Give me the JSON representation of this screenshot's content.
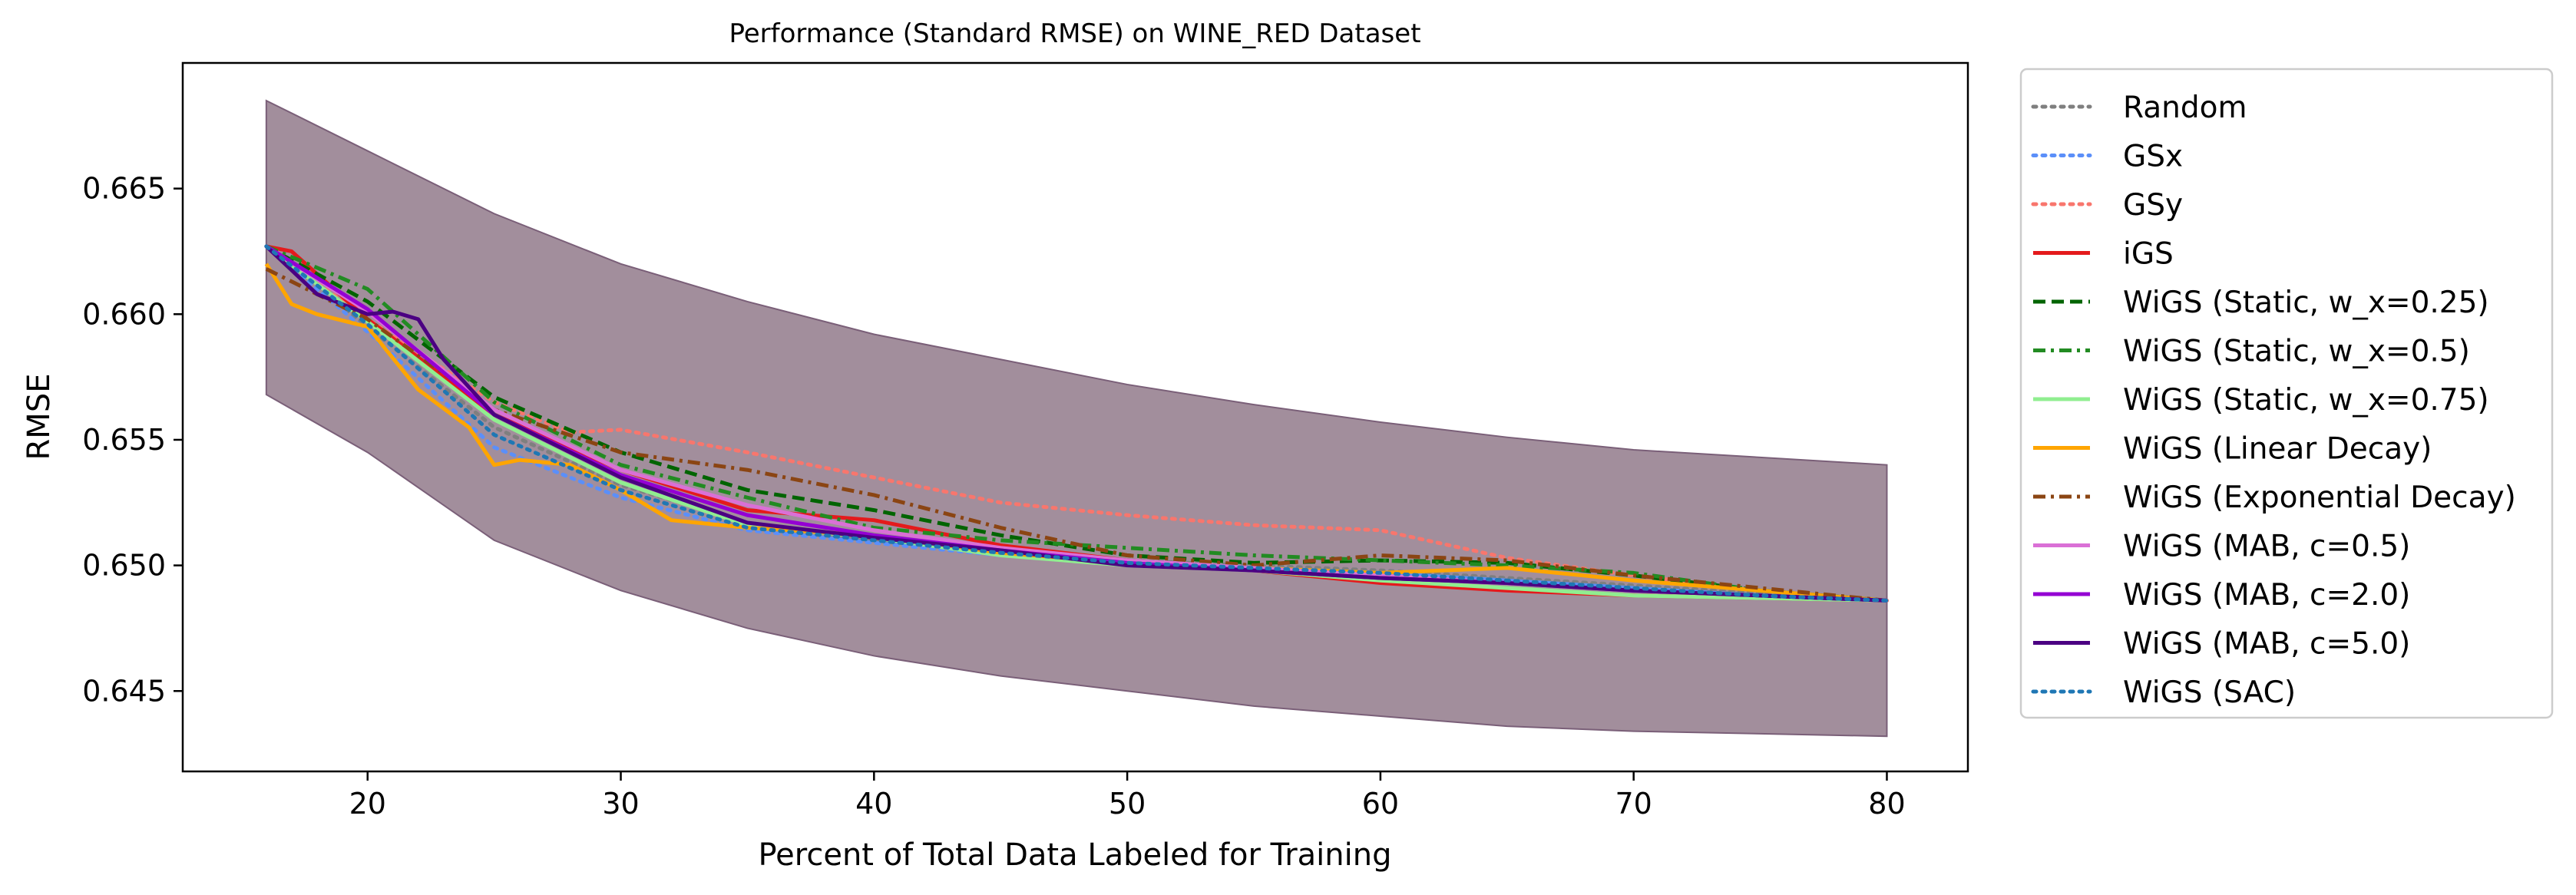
{
  "chart_data": {
    "type": "line",
    "title": "Performance (Standard RMSE) on WINE_RED Dataset",
    "xlabel": "Percent of Total Data Labeled for Training",
    "ylabel": "RMSE",
    "xlim": [
      12.7,
      83.2
    ],
    "ylim": [
      0.6418,
      0.67
    ],
    "xticks": [
      20,
      30,
      40,
      50,
      60,
      70,
      80
    ],
    "yticks": [
      0.645,
      0.65,
      0.655,
      0.66,
      0.665
    ],
    "xtick_labels": [
      "20",
      "30",
      "40",
      "50",
      "60",
      "70",
      "80"
    ],
    "ytick_labels": [
      "0.645",
      "0.650",
      "0.655",
      "0.660",
      "0.665"
    ],
    "grid": false,
    "legend_position": "outside-right",
    "band": {
      "x": [
        16,
        20,
        25,
        30,
        35,
        40,
        45,
        50,
        55,
        60,
        65,
        70,
        75,
        80
      ],
      "lower": [
        0.6568,
        0.6545,
        0.651,
        0.649,
        0.6475,
        0.6464,
        0.6456,
        0.645,
        0.6444,
        0.644,
        0.6436,
        0.6434,
        0.6433,
        0.6432
      ],
      "upper": [
        0.6685,
        0.6665,
        0.664,
        0.662,
        0.6605,
        0.6592,
        0.6582,
        0.6572,
        0.6564,
        0.6557,
        0.6551,
        0.6546,
        0.6543,
        0.654
      ],
      "color": "#9a8494"
    },
    "series": [
      {
        "name": "Random",
        "color": "#7f7f7f",
        "style": "dotted",
        "x": [
          16,
          20,
          25,
          30,
          35,
          40,
          45,
          50,
          55,
          60,
          65,
          70,
          75,
          80
        ],
        "y": [
          0.6627,
          0.6595,
          0.6555,
          0.6532,
          0.6517,
          0.651,
          0.6505,
          0.6502,
          0.65,
          0.6498,
          0.6495,
          0.6492,
          0.6489,
          0.6486
        ]
      },
      {
        "name": "GSx",
        "color": "#5b8ff9",
        "style": "dotted",
        "x": [
          16,
          20,
          25,
          30,
          35,
          40,
          45,
          50,
          55,
          60,
          65,
          70,
          75,
          80
        ],
        "y": [
          0.6627,
          0.6593,
          0.6547,
          0.6527,
          0.6514,
          0.6509,
          0.6504,
          0.6501,
          0.6499,
          0.6497,
          0.6494,
          0.6491,
          0.6488,
          0.6486
        ]
      },
      {
        "name": "GSy",
        "color": "#f8766d",
        "style": "dotted",
        "x": [
          16,
          20,
          25,
          28,
          30,
          35,
          40,
          45,
          50,
          55,
          60,
          65,
          70,
          75,
          80
        ],
        "y": [
          0.6627,
          0.6598,
          0.6565,
          0.6553,
          0.6554,
          0.6545,
          0.6535,
          0.6525,
          0.652,
          0.6516,
          0.6514,
          0.6503,
          0.6496,
          0.649,
          0.6486
        ]
      },
      {
        "name": "iGS",
        "color": "#e41a1c",
        "style": "solid",
        "x": [
          16,
          17,
          20,
          25,
          30,
          35,
          40,
          45,
          50,
          55,
          60,
          65,
          70,
          75,
          80
        ],
        "y": [
          0.6627,
          0.6625,
          0.6598,
          0.656,
          0.6538,
          0.6522,
          0.6518,
          0.6508,
          0.6502,
          0.6498,
          0.6493,
          0.649,
          0.6488,
          0.6487,
          0.6486
        ]
      },
      {
        "name": "WiGS (Static, w_x=0.25)",
        "color": "#006400",
        "style": "dashed",
        "x": [
          16,
          20,
          25,
          30,
          35,
          40,
          45,
          50,
          55,
          60,
          65,
          70,
          75,
          80
        ],
        "y": [
          0.6627,
          0.6605,
          0.6567,
          0.6545,
          0.653,
          0.6522,
          0.6512,
          0.6504,
          0.6501,
          0.6502,
          0.6501,
          0.6496,
          0.649,
          0.6486
        ]
      },
      {
        "name": "WiGS (Static, w_x=0.5)",
        "color": "#228b22",
        "style": "dashdot",
        "x": [
          16,
          20,
          25,
          30,
          35,
          40,
          45,
          50,
          55,
          60,
          65,
          70,
          75,
          80
        ],
        "y": [
          0.6627,
          0.661,
          0.6565,
          0.654,
          0.6527,
          0.6515,
          0.651,
          0.6507,
          0.6504,
          0.6502,
          0.65,
          0.6497,
          0.649,
          0.6486
        ]
      },
      {
        "name": "WiGS (Static, w_x=0.75)",
        "color": "#90ee90",
        "style": "solid",
        "x": [
          16,
          20,
          25,
          30,
          35,
          40,
          45,
          50,
          55,
          60,
          65,
          70,
          75,
          80
        ],
        "y": [
          0.6627,
          0.6597,
          0.6558,
          0.6533,
          0.6516,
          0.6511,
          0.6504,
          0.65,
          0.6498,
          0.6494,
          0.6491,
          0.6488,
          0.6487,
          0.6486
        ]
      },
      {
        "name": "WiGS (Linear Decay)",
        "color": "#ffa500",
        "style": "solid",
        "x": [
          16,
          17,
          18,
          20,
          22,
          24,
          25,
          26,
          28,
          30,
          32,
          35,
          40,
          45,
          50,
          55,
          60,
          65,
          70,
          75,
          80
        ],
        "y": [
          0.662,
          0.6604,
          0.66,
          0.6595,
          0.657,
          0.6555,
          0.654,
          0.6542,
          0.654,
          0.653,
          0.6518,
          0.6515,
          0.6512,
          0.6505,
          0.6501,
          0.6499,
          0.6497,
          0.6499,
          0.6494,
          0.649,
          0.6486
        ]
      },
      {
        "name": "WiGS (Exponential Decay)",
        "color": "#8b4513",
        "style": "dashdot",
        "x": [
          16,
          20,
          25,
          30,
          35,
          40,
          45,
          50,
          55,
          60,
          65,
          70,
          75,
          80
        ],
        "y": [
          0.6618,
          0.6598,
          0.6562,
          0.6545,
          0.6538,
          0.6528,
          0.6515,
          0.6504,
          0.65,
          0.6504,
          0.6502,
          0.6496,
          0.6491,
          0.6486
        ]
      },
      {
        "name": "WiGS (MAB, c=0.5)",
        "color": "#da70d6",
        "style": "solid",
        "x": [
          16,
          20,
          25,
          30,
          35,
          40,
          45,
          50,
          55,
          60,
          65,
          70,
          75,
          80
        ],
        "y": [
          0.6627,
          0.6601,
          0.6562,
          0.6538,
          0.6524,
          0.6514,
          0.6507,
          0.6502,
          0.6499,
          0.6496,
          0.6493,
          0.649,
          0.6488,
          0.6486
        ]
      },
      {
        "name": "WiGS (MAB, c=2.0)",
        "color": "#9400d3",
        "style": "solid",
        "x": [
          16,
          20,
          25,
          30,
          35,
          40,
          45,
          50,
          55,
          60,
          65,
          70,
          75,
          80
        ],
        "y": [
          0.6627,
          0.6602,
          0.656,
          0.6536,
          0.652,
          0.6512,
          0.6506,
          0.6501,
          0.6498,
          0.6495,
          0.6493,
          0.649,
          0.6488,
          0.6486
        ]
      },
      {
        "name": "WiGS (MAB, c=5.0)",
        "color": "#4b0082",
        "style": "solid",
        "x": [
          16,
          18,
          20,
          21,
          22,
          23,
          25,
          30,
          35,
          40,
          45,
          50,
          55,
          60,
          65,
          70,
          75,
          80
        ],
        "y": [
          0.6627,
          0.6608,
          0.66,
          0.6601,
          0.6598,
          0.6582,
          0.656,
          0.6535,
          0.6517,
          0.6511,
          0.6506,
          0.65,
          0.6498,
          0.6495,
          0.6493,
          0.649,
          0.6488,
          0.6486
        ]
      },
      {
        "name": "WiGS (SAC)",
        "color": "#1f77b4",
        "style": "dotted",
        "x": [
          16,
          20,
          25,
          30,
          35,
          40,
          45,
          50,
          55,
          60,
          65,
          70,
          75,
          80
        ],
        "y": [
          0.6627,
          0.6596,
          0.6552,
          0.653,
          0.6515,
          0.651,
          0.6505,
          0.6501,
          0.6499,
          0.6497,
          0.6494,
          0.6491,
          0.6488,
          0.6486
        ]
      }
    ]
  }
}
